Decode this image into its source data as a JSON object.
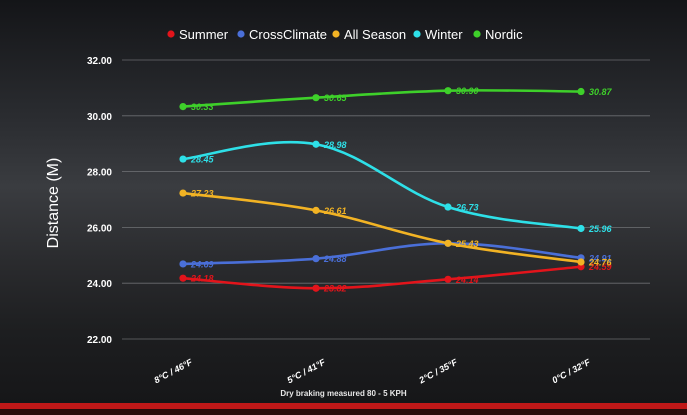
{
  "colors": {
    "summer": "#e3141b",
    "crossclimate": "#4a6fd8",
    "allseason": "#f2b324",
    "winter": "#2ee0e8",
    "nordic": "#3ed02a",
    "grid": "#8a8c90",
    "accent_bar": "#c01818"
  },
  "footer_note": "Dry braking measured 80 - 5 KPH",
  "chart_data": {
    "type": "line",
    "title": "",
    "xlabel": "",
    "ylabel": "Distance (M)",
    "categories": [
      "8°C / 46°F",
      "5°C / 41°F",
      "2°C / 35°F",
      "0°C / 32°F"
    ],
    "ylim": [
      22,
      33
    ],
    "yticks": [
      "22.00",
      "24.00",
      "26.00",
      "28.00",
      "30.00",
      "32.00"
    ],
    "legend_position": "top",
    "grid": true,
    "series": [
      {
        "key": "summer",
        "name": "Summer",
        "values": [
          24.18,
          23.82,
          24.14,
          24.59
        ],
        "labels": [
          "24.18",
          "23.82",
          "24.14",
          "24.59"
        ]
      },
      {
        "key": "crossclimate",
        "name": "CrossClimate",
        "values": [
          24.69,
          24.88,
          25.43,
          24.91
        ],
        "labels": [
          "24.69",
          "24.88",
          "",
          "24.91"
        ]
      },
      {
        "key": "allseason",
        "name": "All Season",
        "values": [
          27.23,
          26.61,
          25.43,
          24.76
        ],
        "labels": [
          "27.23",
          "26.61",
          "25.43",
          "24.76"
        ]
      },
      {
        "key": "winter",
        "name": "Winter",
        "values": [
          28.45,
          28.98,
          26.73,
          25.96
        ],
        "labels": [
          "28.45",
          "28.98",
          "26.73",
          "25.96"
        ]
      },
      {
        "key": "nordic",
        "name": "Nordic",
        "values": [
          30.33,
          30.65,
          30.9,
          30.87
        ],
        "labels": [
          "30.33",
          "30.65",
          "30.90",
          "30.87"
        ]
      }
    ]
  }
}
